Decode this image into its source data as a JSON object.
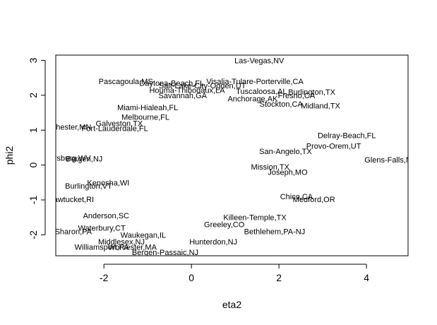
{
  "chart_data": {
    "type": "scatter",
    "title": "",
    "xlabel": "eta2",
    "ylabel": "phi2",
    "xlim": [
      -3.1,
      4.95
    ],
    "ylim": [
      -2.6,
      3.15
    ],
    "xticks": [
      -2,
      0,
      2,
      4
    ],
    "yticks": [
      -2,
      -1,
      0,
      1,
      2,
      3
    ],
    "xtick_labels": [
      "-2",
      "0",
      "2",
      "4"
    ],
    "ytick_labels": [
      "-2",
      "-1",
      "0",
      "1",
      "2",
      "3"
    ],
    "grid": false,
    "legend": "none",
    "point_style": "text-labels",
    "points": [
      {
        "label": "Las-Vegas,NV",
        "x": 1.55,
        "y": 3.0
      },
      {
        "label": "Visalia-Tulare-Porterville,CA",
        "x": 1.45,
        "y": 2.4
      },
      {
        "label": "Pascagoula,MS",
        "x": -1.5,
        "y": 2.4
      },
      {
        "label": "Daytona-Beach,FL",
        "x": -0.45,
        "y": 2.35
      },
      {
        "label": "Salt-Lake-City-Ogden,UT",
        "x": 0.25,
        "y": 2.28
      },
      {
        "label": "Houma-Thibodaux,LA",
        "x": -0.1,
        "y": 2.15
      },
      {
        "label": "Tuscaloosa,AL",
        "x": 1.6,
        "y": 2.12
      },
      {
        "label": "Burlington,TX",
        "x": 2.75,
        "y": 2.1
      },
      {
        "label": "Savannah,GA",
        "x": -0.2,
        "y": 2.0
      },
      {
        "label": "Fresno,CA",
        "x": 2.4,
        "y": 2.0
      },
      {
        "label": "Anchorage,AK",
        "x": 1.4,
        "y": 1.9
      },
      {
        "label": "Stockton,CA",
        "x": 2.05,
        "y": 1.75
      },
      {
        "label": "Midland,TX",
        "x": 2.95,
        "y": 1.7
      },
      {
        "label": "Miami-Hialeah,FL",
        "x": -1.0,
        "y": 1.65
      },
      {
        "label": "Melbourne,FL",
        "x": -1.05,
        "y": 1.38
      },
      {
        "label": "Galveston,TX",
        "x": -1.65,
        "y": 1.2
      },
      {
        "label": "Rochester,MN",
        "x": -2.85,
        "y": 1.1
      },
      {
        "label": "Fort-Lauderdale,FL",
        "x": -1.75,
        "y": 1.05
      },
      {
        "label": "Delray-Beach,FL",
        "x": 3.55,
        "y": 0.85
      },
      {
        "label": "Provo-Orem,UT",
        "x": 3.25,
        "y": 0.55
      },
      {
        "label": "San-Angelo,TX",
        "x": 2.15,
        "y": 0.4
      },
      {
        "label": "Glens-Falls,NY",
        "x": 4.55,
        "y": 0.15
      },
      {
        "label": "Parkersburg,WV",
        "x": -2.95,
        "y": 0.2
      },
      {
        "label": "Bergen,NJ",
        "x": -2.45,
        "y": 0.18
      },
      {
        "label": "Joseph,MO",
        "x": 2.2,
        "y": -0.2
      },
      {
        "label": "Mission,TX",
        "x": 1.8,
        "y": -0.05
      },
      {
        "label": "Burlington,VT",
        "x": -2.35,
        "y": -0.6
      },
      {
        "label": "Kenosha,WI",
        "x": -1.9,
        "y": -0.5
      },
      {
        "label": "Pawtucket,RI",
        "x": -2.75,
        "y": -0.98
      },
      {
        "label": "Chico,CA",
        "x": 2.4,
        "y": -0.9
      },
      {
        "label": "Medford,OR",
        "x": 2.8,
        "y": -0.98
      },
      {
        "label": "Killeen-Temple,TX",
        "x": 1.45,
        "y": -1.5
      },
      {
        "label": "Anderson,SC",
        "x": -1.95,
        "y": -1.45
      },
      {
        "label": "Greeley,CO",
        "x": 0.75,
        "y": -1.7
      },
      {
        "label": "Waterbury,CT",
        "x": -2.05,
        "y": -1.8
      },
      {
        "label": "Sharon,PA",
        "x": -2.7,
        "y": -1.9
      },
      {
        "label": "Bethlehem,PA-NJ",
        "x": 1.9,
        "y": -1.9
      },
      {
        "label": "Waukegan,IL",
        "x": -1.1,
        "y": -2.0
      },
      {
        "label": "Hunterdon,NJ",
        "x": 0.5,
        "y": -2.2
      },
      {
        "label": "Middlesex,NJ",
        "x": -1.6,
        "y": -2.2
      },
      {
        "label": "Williamsport,PA",
        "x": -2.05,
        "y": -2.35
      },
      {
        "label": "Worcester,MA",
        "x": -1.35,
        "y": -2.35
      },
      {
        "label": "Bergen-Passaic,NJ",
        "x": -0.6,
        "y": -2.5
      }
    ]
  }
}
